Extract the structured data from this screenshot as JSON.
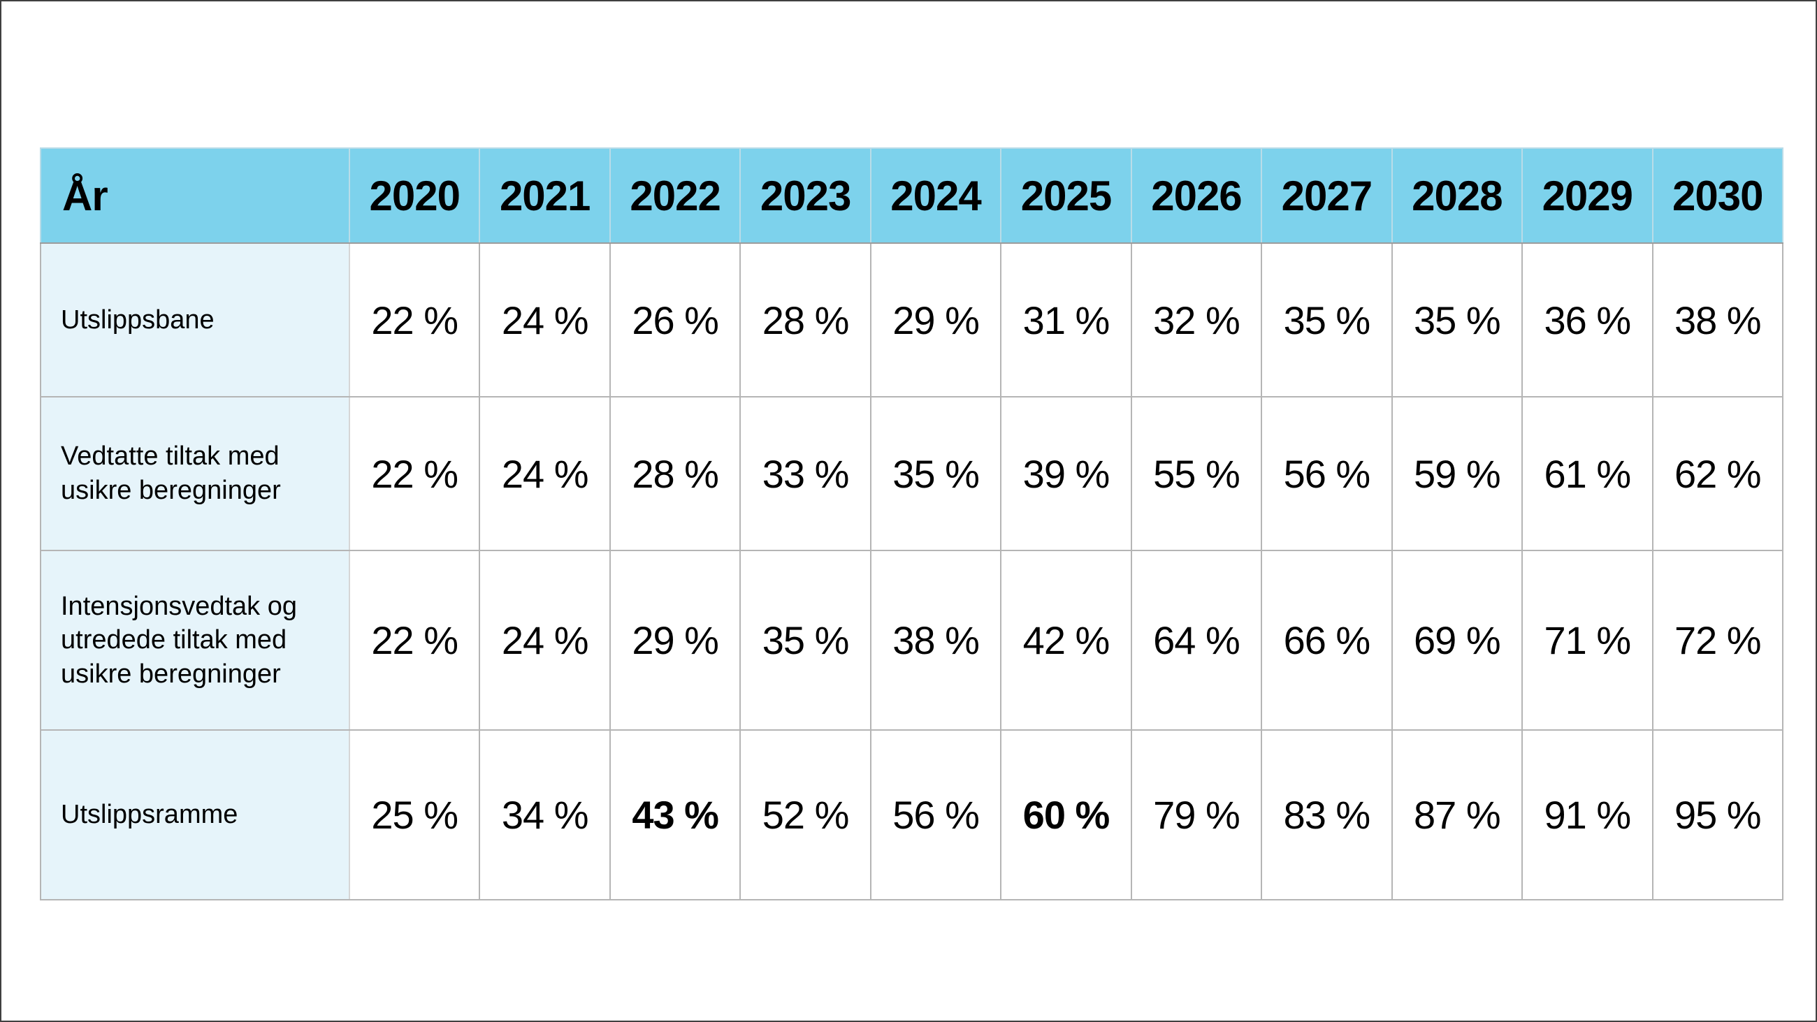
{
  "chart_data": {
    "type": "table",
    "corner_label": "År",
    "years": [
      "2020",
      "2021",
      "2022",
      "2023",
      "2024",
      "2025",
      "2026",
      "2027",
      "2028",
      "2029",
      "2030"
    ],
    "unit": "%",
    "rows": [
      {
        "label": "Utslippsbane",
        "values_pct": [
          22,
          24,
          26,
          28,
          29,
          31,
          32,
          35,
          35,
          36,
          38
        ],
        "display": [
          "22 %",
          "24 %",
          "26 %",
          "28 %",
          "29 %",
          "31 %",
          "32 %",
          "35 %",
          "35 %",
          "36 %",
          "38 %"
        ],
        "bold_columns": []
      },
      {
        "label": "Vedtatte tiltak med usikre beregninger",
        "values_pct": [
          22,
          24,
          28,
          33,
          35,
          39,
          55,
          56,
          59,
          61,
          62
        ],
        "display": [
          "22 %",
          "24 %",
          "28 %",
          "33 %",
          "35 %",
          "39 %",
          "55 %",
          "56 %",
          "59 %",
          "61 %",
          "62 %"
        ],
        "bold_columns": []
      },
      {
        "label": "Intensjonsvedtak og utredede tiltak med usikre beregninger",
        "values_pct": [
          22,
          24,
          29,
          35,
          38,
          42,
          64,
          66,
          69,
          71,
          72
        ],
        "display": [
          "22 %",
          "24 %",
          "29 %",
          "35 %",
          "38 %",
          "42 %",
          "64 %",
          "66 %",
          "69 %",
          "71 %",
          "72 %"
        ],
        "bold_columns": []
      },
      {
        "label": "Utslippsramme",
        "values_pct": [
          25,
          34,
          43,
          52,
          56,
          60,
          79,
          83,
          87,
          91,
          95
        ],
        "display": [
          "25 %",
          "34 %",
          "43 %",
          "52 %",
          "56 %",
          "60 %",
          "79 %",
          "83 %",
          "87 %",
          "91 %",
          "95 %"
        ],
        "bold_columns": [
          2,
          5
        ]
      }
    ]
  },
  "colors": {
    "header_bg": "#7dd2ec",
    "label_bg": "#e6f4fa",
    "grid": "#b5b5b5",
    "text": "#000000",
    "page_border": "#404040"
  }
}
